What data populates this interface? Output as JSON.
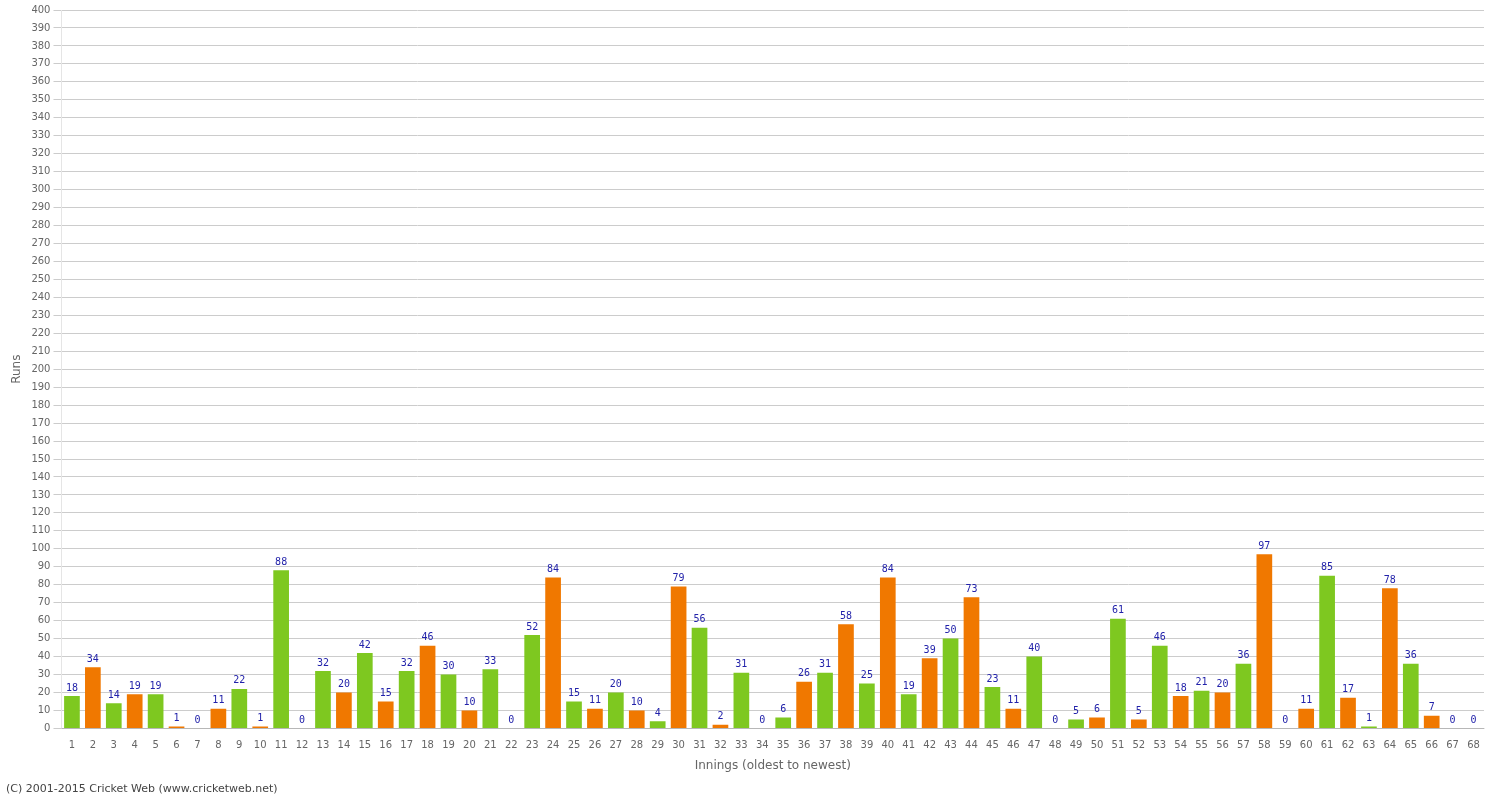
{
  "chart_data": {
    "type": "bar",
    "xlabel": "Innings (oldest to newest)",
    "ylabel": "Runs",
    "annotations": [
      "(C) 2001-2015 Cricket Web (www.cricketweb.net)"
    ],
    "categories": [
      1,
      2,
      3,
      4,
      5,
      6,
      7,
      8,
      9,
      10,
      11,
      12,
      13,
      14,
      15,
      16,
      17,
      18,
      19,
      20,
      21,
      22,
      23,
      24,
      25,
      26,
      27,
      28,
      29,
      30,
      31,
      32,
      33,
      34,
      35,
      36,
      37,
      38,
      39,
      40,
      41,
      42,
      43,
      44,
      45,
      46,
      47,
      48,
      49,
      50,
      51,
      52,
      53,
      54,
      55,
      56,
      57,
      58,
      59,
      60,
      61,
      62,
      63,
      64,
      65,
      66,
      67,
      68
    ],
    "values": [
      18,
      34,
      14,
      19,
      19,
      1,
      0,
      11,
      22,
      1,
      88,
      0,
      32,
      20,
      42,
      15,
      32,
      46,
      30,
      10,
      33,
      0,
      52,
      84,
      15,
      11,
      20,
      10,
      4,
      79,
      56,
      2,
      31,
      0,
      6,
      26,
      31,
      58,
      25,
      84,
      19,
      39,
      50,
      73,
      23,
      11,
      40,
      0,
      5,
      6,
      61,
      5,
      46,
      18,
      21,
      20,
      36,
      97,
      0,
      11,
      85,
      17,
      1,
      78,
      36,
      7,
      0,
      0
    ],
    "colors": [
      "#7ec820",
      "#f07800",
      "#7ec820",
      "#f07800",
      "#7ec820",
      "#f07800",
      "#7ec820",
      "#f07800",
      "#7ec820",
      "#f07800",
      "#7ec820",
      "#f07800",
      "#7ec820",
      "#f07800",
      "#7ec820",
      "#f07800",
      "#7ec820",
      "#f07800",
      "#7ec820",
      "#f07800",
      "#7ec820",
      "#f07800",
      "#7ec820",
      "#f07800",
      "#7ec820",
      "#f07800",
      "#7ec820",
      "#f07800",
      "#7ec820",
      "#f07800",
      "#7ec820",
      "#f07800",
      "#7ec820",
      "#f07800",
      "#7ec820",
      "#f07800",
      "#7ec820",
      "#f07800",
      "#7ec820",
      "#f07800",
      "#7ec820",
      "#f07800",
      "#7ec820",
      "#f07800",
      "#7ec820",
      "#f07800",
      "#7ec820",
      "#f07800",
      "#7ec820",
      "#f07800",
      "#7ec820",
      "#f07800",
      "#7ec820",
      "#f07800",
      "#7ec820",
      "#f07800",
      "#7ec820",
      "#f07800",
      "#7ec820",
      "#f07800",
      "#7ec820",
      "#f07800",
      "#7ec820",
      "#f07800",
      "#7ec820",
      "#f07800",
      "#7ec820",
      "#f07800"
    ],
    "ylim": [
      0,
      400
    ],
    "yticks": [
      0,
      10,
      20,
      30,
      40,
      50,
      60,
      70,
      80,
      90,
      100,
      110,
      120,
      130,
      140,
      150,
      160,
      170,
      180,
      190,
      200,
      210,
      220,
      230,
      240,
      250,
      260,
      270,
      280,
      290,
      300,
      310,
      320,
      330,
      340,
      350,
      360,
      370,
      380,
      390,
      400
    ],
    "grid": true,
    "data_labels": true
  }
}
